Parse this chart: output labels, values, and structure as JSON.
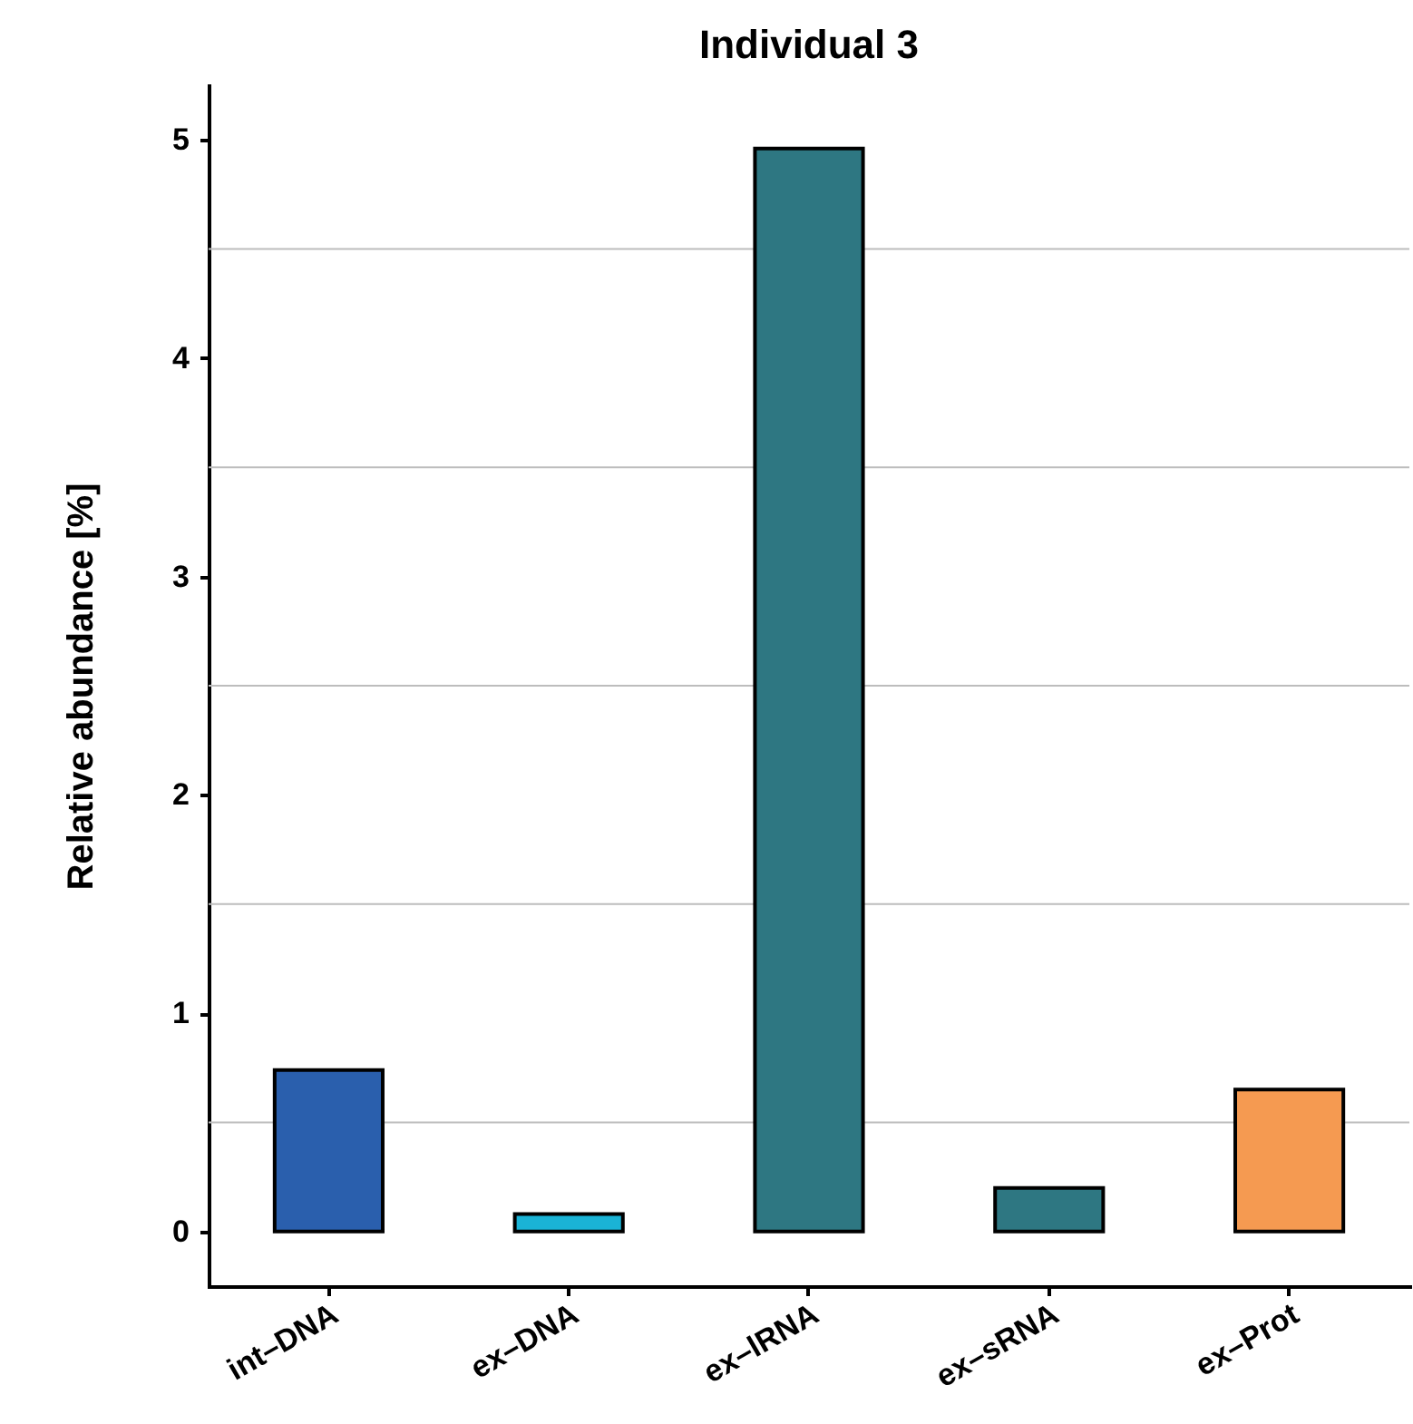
{
  "chart_data": {
    "type": "bar",
    "title": "Individual 3",
    "ylabel": "Relative abundance [%]",
    "categories": [
      "int–DNA",
      "ex–DNA",
      "ex–lRNA",
      "ex–sRNA",
      "ex–Prot"
    ],
    "values": [
      0.74,
      0.08,
      4.96,
      0.2,
      0.65
    ],
    "colors": [
      "#2a5fad",
      "#1ab3d6",
      "#2e7782",
      "#2e7782",
      "#f59a51"
    ],
    "ylim": [
      -0.25,
      5.25
    ],
    "yticks": [
      0,
      1,
      2,
      3,
      4,
      5
    ],
    "grid": "y"
  }
}
